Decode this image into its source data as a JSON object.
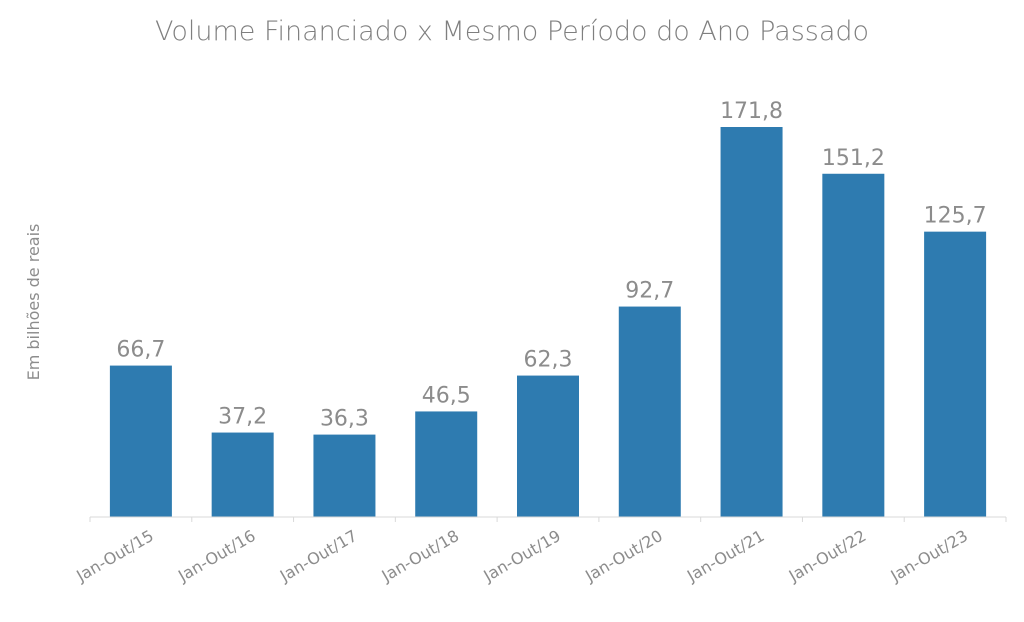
{
  "colors": {
    "bar": "#2e7bb0",
    "title": "#7f7f7f",
    "label": "#8c8c8c",
    "axis": "#d9d9d9",
    "background": "#ffffff"
  },
  "chart_data": {
    "type": "bar",
    "title": "Volume Financiado x Mesmo Período do Ano Passado",
    "xlabel": "",
    "ylabel": "Em bilhões de reais",
    "categories": [
      "Jan-Out/15",
      "Jan-Out/16",
      "Jan-Out/17",
      "Jan-Out/18",
      "Jan-Out/19",
      "Jan-Out/20",
      "Jan-Out/21",
      "Jan-Out/22",
      "Jan-Out/23"
    ],
    "values": [
      66.7,
      37.2,
      36.3,
      46.5,
      62.3,
      92.7,
      171.8,
      151.2,
      125.7
    ],
    "value_labels": [
      "66,7",
      "37,2",
      "36,3",
      "46,5",
      "62,3",
      "92,7",
      "171,8",
      "151,2",
      "125,7"
    ],
    "ylim": [
      0,
      171.8
    ],
    "grid": false,
    "legend": "none",
    "y_axis_ticks": "hidden",
    "x_tick_rotation": "diagonal"
  }
}
